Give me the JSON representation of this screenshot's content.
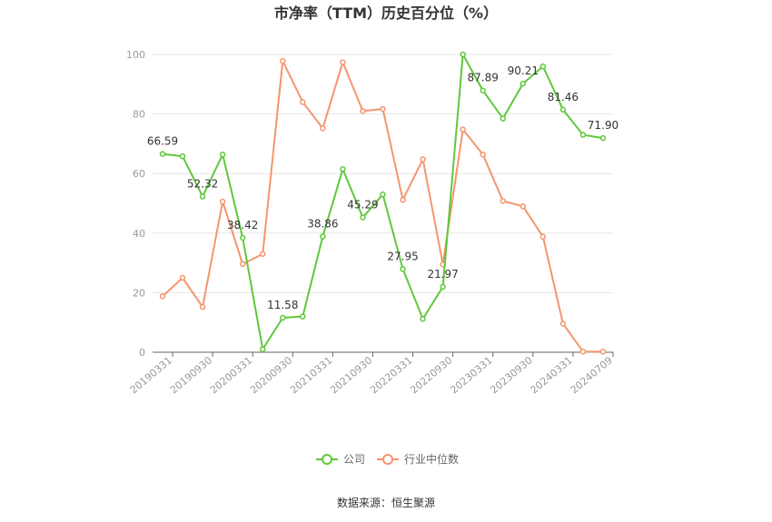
{
  "chart_data": {
    "type": "line",
    "title": "市净率（TTM）历史百分位（%）",
    "xlabel": "",
    "ylabel": "",
    "ylim": [
      0,
      100
    ],
    "yticks": [
      0,
      20,
      40,
      60,
      80,
      100
    ],
    "x_tick_labels": [
      "20190331",
      "20190930",
      "20200331",
      "20200930",
      "20210331",
      "20210930",
      "20220331",
      "20220930",
      "20230331",
      "20230930",
      "20240331",
      "20240709"
    ],
    "x_count": 23,
    "grid": true,
    "legend_position": "bottom-center",
    "series": [
      {
        "name": "公司",
        "color": "#5fc83b",
        "values": [
          66.59,
          65.8,
          52.32,
          66.4,
          38.42,
          1.0,
          11.58,
          12.0,
          38.86,
          61.5,
          45.29,
          53.0,
          27.95,
          11.2,
          21.97,
          100.0,
          87.89,
          78.5,
          90.21,
          96.0,
          81.46,
          73.0,
          71.9
        ]
      },
      {
        "name": "行业中位数",
        "color": "#f4956c",
        "values": [
          18.8,
          25.0,
          15.2,
          50.6,
          29.6,
          33.0,
          97.8,
          84.0,
          75.2,
          97.4,
          81.0,
          81.7,
          51.2,
          64.8,
          29.5,
          74.8,
          66.4,
          50.8,
          49.0,
          38.8,
          9.6,
          0.2,
          0.2
        ]
      }
    ],
    "data_labels": [
      {
        "index": 0,
        "text": "66.59"
      },
      {
        "index": 2,
        "text": "52.32"
      },
      {
        "index": 4,
        "text": "38.42"
      },
      {
        "index": 6,
        "text": "11.58"
      },
      {
        "index": 8,
        "text": "38.86"
      },
      {
        "index": 10,
        "text": "45.29"
      },
      {
        "index": 12,
        "text": "27.95"
      },
      {
        "index": 14,
        "text": "21.97"
      },
      {
        "index": 16,
        "text": "87.89"
      },
      {
        "index": 18,
        "text": "90.21"
      },
      {
        "index": 20,
        "text": "81.46"
      },
      {
        "index": 22,
        "text": "71.90"
      }
    ]
  },
  "source": "数据来源：恒生聚源"
}
